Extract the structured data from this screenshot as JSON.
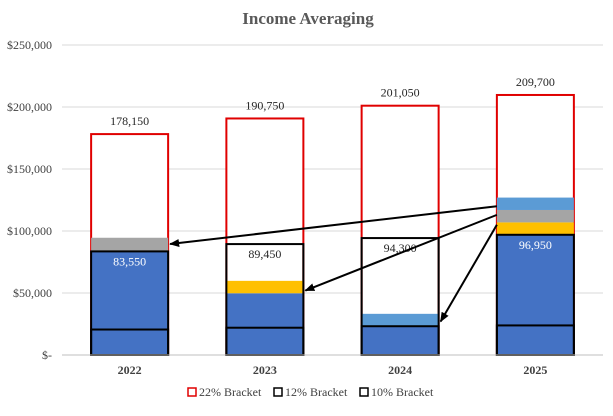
{
  "chart_data": {
    "type": "bar",
    "title": "Income Averaging",
    "xlabel": "",
    "ylabel": "",
    "ylim": [
      0,
      250000
    ],
    "y_ticks": [
      0,
      50000,
      100000,
      150000,
      200000,
      250000
    ],
    "y_tick_labels": [
      "$-",
      "$50,000",
      "$100,000",
      "$150,000",
      "$200,000",
      "$250,000"
    ],
    "grid": true,
    "categories": [
      "2022",
      "2023",
      "2024",
      "2025"
    ],
    "brackets": {
      "top_22": [
        178150,
        190750,
        201050,
        209700
      ],
      "top_12": [
        83550,
        89450,
        94300,
        96950
      ],
      "top_10": [
        20550,
        22000,
        23200,
        23850
      ]
    },
    "income_segments": [
      {
        "name": "Dark blue income",
        "color": "#4472C4",
        "values": [
          83550,
          49800,
          23200,
          96950
        ]
      },
      {
        "name": "Gold income",
        "color": "#FFC000",
        "values": [
          0,
          10000,
          0,
          10000
        ]
      },
      {
        "name": "Gray income",
        "color": "#A5A5A5",
        "values": [
          11000,
          0,
          0,
          10000
        ]
      },
      {
        "name": "Light blue income",
        "color": "#5B9BD5",
        "values": [
          0,
          0,
          10000,
          10000
        ]
      }
    ],
    "total_labels": [
      "178,150",
      "190,750",
      "201,050",
      "209,700"
    ],
    "inner_labels": [
      "83,550",
      "89,450",
      "94,300",
      "96,950"
    ],
    "arrows": [
      {
        "from_category": "2025",
        "from_value": 120000,
        "to_category": "2022",
        "to_value": 89500
      },
      {
        "from_category": "2025",
        "from_value": 113000,
        "to_category": "2023",
        "to_value": 52000
      },
      {
        "from_category": "2025",
        "from_value": 105000,
        "to_category": "2024",
        "to_value": 27000
      }
    ],
    "legend": [
      {
        "label": "22% Bracket",
        "color": "#E00000"
      },
      {
        "label": "12% Bracket",
        "color": "#000000"
      },
      {
        "label": "10% Bracket",
        "color": "#000000"
      }
    ],
    "legend_position": "bottom"
  }
}
